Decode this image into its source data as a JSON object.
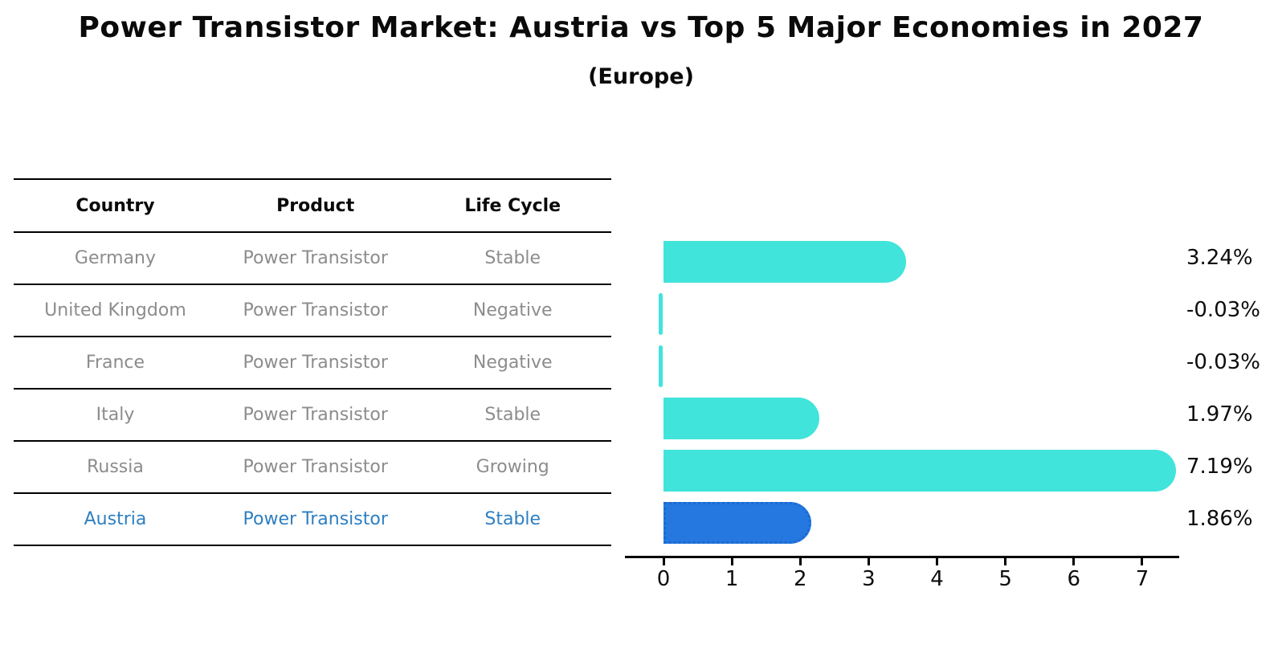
{
  "chart_data": {
    "type": "bar",
    "orientation": "horizontal",
    "title": "Power Transistor Market: Austria vs Top 5 Major Economies in 2027",
    "subtitle": "(Europe)",
    "categories": [
      "Germany",
      "United Kingdom",
      "France",
      "Italy",
      "Russia",
      "Austria"
    ],
    "values": [
      3.24,
      -0.03,
      -0.03,
      1.97,
      7.19,
      1.86
    ],
    "value_labels": [
      "3.24%",
      "-0.03%",
      "-0.03%",
      "1.97%",
      "7.19%",
      "1.86%"
    ],
    "xticks": [
      "0",
      "1",
      "2",
      "3",
      "4",
      "5",
      "6",
      "7"
    ],
    "xlim": [
      0,
      7.5
    ],
    "grid": false,
    "legend": "none",
    "highlight_index": 5
  },
  "table": {
    "headers": [
      "Country",
      "Product",
      "Life Cycle"
    ],
    "rows": [
      {
        "country": "Germany",
        "product": "Power Transistor",
        "life_cycle": "Stable"
      },
      {
        "country": "United Kingdom",
        "product": "Power Transistor",
        "life_cycle": "Negative"
      },
      {
        "country": "France",
        "product": "Power Transistor",
        "life_cycle": "Negative"
      },
      {
        "country": "Italy",
        "product": "Power Transistor",
        "life_cycle": "Stable"
      },
      {
        "country": "Russia",
        "product": "Power Transistor",
        "life_cycle": "Growing"
      },
      {
        "country": "Austria",
        "product": "Power Transistor",
        "life_cycle": "Stable"
      }
    ]
  },
  "colors": {
    "bar": "#40e4da",
    "highlight_bar": "#2478e0",
    "highlight_dot": "#1b6ad2",
    "highlight_text": "#2d7fc1",
    "row_text": "#8c8c8c",
    "heading_text": "#0a0a0a",
    "axis": "#000000"
  }
}
